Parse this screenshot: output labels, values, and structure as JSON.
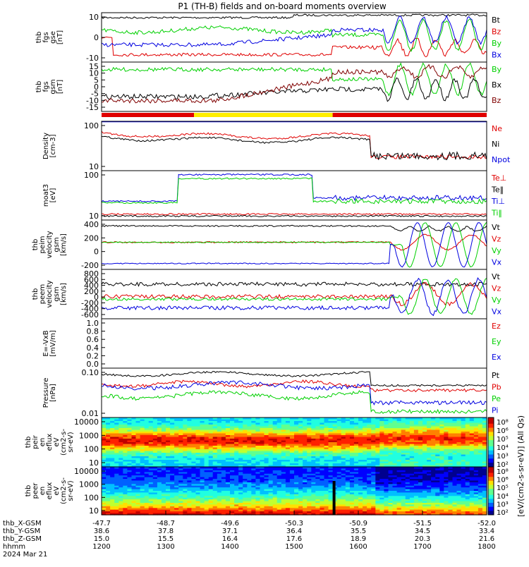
{
  "title": "P1 (TH-B) fields and on-board moments overview",
  "colors": {
    "black": "#000000",
    "red": "#e00000",
    "green": "#00d000",
    "blue": "#0000e0",
    "yellow": "#ffee00",
    "dark_red": "#800000"
  },
  "chart_data": [
    {
      "type": "line",
      "panel_label": [
        "thb",
        "fgs",
        "gse",
        "[nT]"
      ],
      "ticks": [
        "10",
        "0",
        "-10"
      ],
      "legend": [
        {
          "name": "Bt",
          "color": "black"
        },
        {
          "name": "Bz",
          "color": "red"
        },
        {
          "name": "By",
          "color": "green"
        },
        {
          "name": "Bx",
          "color": "blue"
        }
      ]
    },
    {
      "type": "line",
      "panel_label": [
        "thb",
        "fgs",
        "gsm",
        "[nT]"
      ],
      "ticks": [
        "15",
        "10",
        "5",
        "0",
        "-5",
        "-10",
        "-15"
      ],
      "legend": [
        {
          "name": "By",
          "color": "green"
        },
        {
          "name": "Bx",
          "color": "black"
        },
        {
          "name": "Bz",
          "color": "dark_red"
        }
      ]
    },
    {
      "type": "line",
      "panel_label": [
        "Density",
        "[cm-3]"
      ],
      "log_scale": true,
      "ticks": [
        "100",
        "10"
      ],
      "legend": [
        {
          "name": "Ne",
          "color": "red"
        },
        {
          "name": "Ni",
          "color": "black"
        },
        {
          "name": "Npot",
          "color": "blue"
        }
      ]
    },
    {
      "type": "line",
      "panel_label": [
        "moat3",
        "[eV]"
      ],
      "log_scale": true,
      "ticks": [
        "100",
        "10"
      ],
      "legend": [
        {
          "name": "Te⊥",
          "color": "red"
        },
        {
          "name": "Te‖",
          "color": "black"
        },
        {
          "name": "Ti⊥",
          "color": "blue"
        },
        {
          "name": "Ti‖",
          "color": "green"
        }
      ]
    },
    {
      "type": "line",
      "panel_label": [
        "thb",
        "peim",
        "velocity",
        "gsm",
        "[km/s]"
      ],
      "ticks": [
        "400",
        "200",
        "0",
        "-200"
      ],
      "legend": [
        {
          "name": "Vt",
          "color": "black"
        },
        {
          "name": "Vz",
          "color": "red"
        },
        {
          "name": "Vy",
          "color": "green"
        },
        {
          "name": "Vx",
          "color": "blue"
        }
      ]
    },
    {
      "type": "line",
      "panel_label": [
        "thb",
        "peem",
        "velocity",
        "gsm",
        "[km/s]"
      ],
      "ticks": [
        "800",
        "600",
        "400",
        "200",
        "0",
        "-200",
        "-400",
        "-600"
      ],
      "legend": [
        {
          "name": "Vt",
          "color": "black"
        },
        {
          "name": "Vz",
          "color": "red"
        },
        {
          "name": "Vy",
          "color": "green"
        },
        {
          "name": "Vx",
          "color": "blue"
        }
      ]
    },
    {
      "type": "line",
      "panel_label": [
        "E=-VxB",
        "[mV/m]"
      ],
      "ticks": [
        "1.0",
        "0.8",
        "0.6",
        "0.4",
        "0.2",
        "0.0"
      ],
      "legend": [
        {
          "name": "Ez",
          "color": "red"
        },
        {
          "name": "Ey",
          "color": "green"
        },
        {
          "name": "Ex",
          "color": "blue"
        }
      ]
    },
    {
      "type": "line",
      "panel_label": [
        "Pressure",
        "[nPa]"
      ],
      "log_scale": true,
      "ticks": [
        "0.10",
        "0.01"
      ],
      "legend": [
        {
          "name": "Pt",
          "color": "black"
        },
        {
          "name": "Pb",
          "color": "red"
        },
        {
          "name": "Pe",
          "color": "green"
        },
        {
          "name": "Pi",
          "color": "blue"
        }
      ]
    },
    {
      "type": "heatmap",
      "panel_label": [
        "thb",
        "peir",
        "en",
        "eflux",
        "eV",
        "(cm2-s-",
        "sr-eV)"
      ],
      "ticks": [
        "10000",
        "1000",
        "100",
        "10"
      ]
    },
    {
      "type": "heatmap",
      "panel_label": [
        "thb",
        "peer",
        "en",
        "eflux",
        "eV",
        "(cm2-s-",
        "sr-eV)"
      ],
      "ticks": [
        "10000",
        "1000",
        "100",
        "10"
      ]
    }
  ],
  "colorbar": {
    "upper_ticks": [
      "10⁸",
      "10⁶",
      "10⁵",
      "10⁴",
      "10³",
      "10²"
    ],
    "lower_ticks": [
      "10⁸",
      "10⁶",
      "10⁵",
      "10⁴",
      "10³",
      "10²"
    ],
    "label": "[eV/(cm2-s-sr-eV)] (All Qs)"
  },
  "orbit_rows": [
    {
      "label": "thb_X-GSM",
      "values": [
        "-47.7",
        "-48.7",
        "-49.6",
        "-50.3",
        "-50.9",
        "-51.5",
        "-52.0"
      ]
    },
    {
      "label": "thb_Y-GSM",
      "values": [
        "38.6",
        "37.8",
        "37.1",
        "36.4",
        "35.5",
        "34.5",
        "33.4"
      ]
    },
    {
      "label": "thb_Z-GSM",
      "values": [
        "15.0",
        "15.5",
        "16.4",
        "17.6",
        "18.9",
        "20.3",
        "21.6"
      ]
    },
    {
      "label": "hhmm",
      "values": [
        "1200",
        "1300",
        "1400",
        "1500",
        "1600",
        "1700",
        "1800"
      ]
    }
  ],
  "date": "2024 Mar 21",
  "mode_bar": [
    {
      "color": "red",
      "from": 0.0,
      "to": 0.24
    },
    {
      "color": "yellow",
      "from": 0.24,
      "to": 0.6
    },
    {
      "color": "red",
      "from": 0.6,
      "to": 1.0
    }
  ]
}
